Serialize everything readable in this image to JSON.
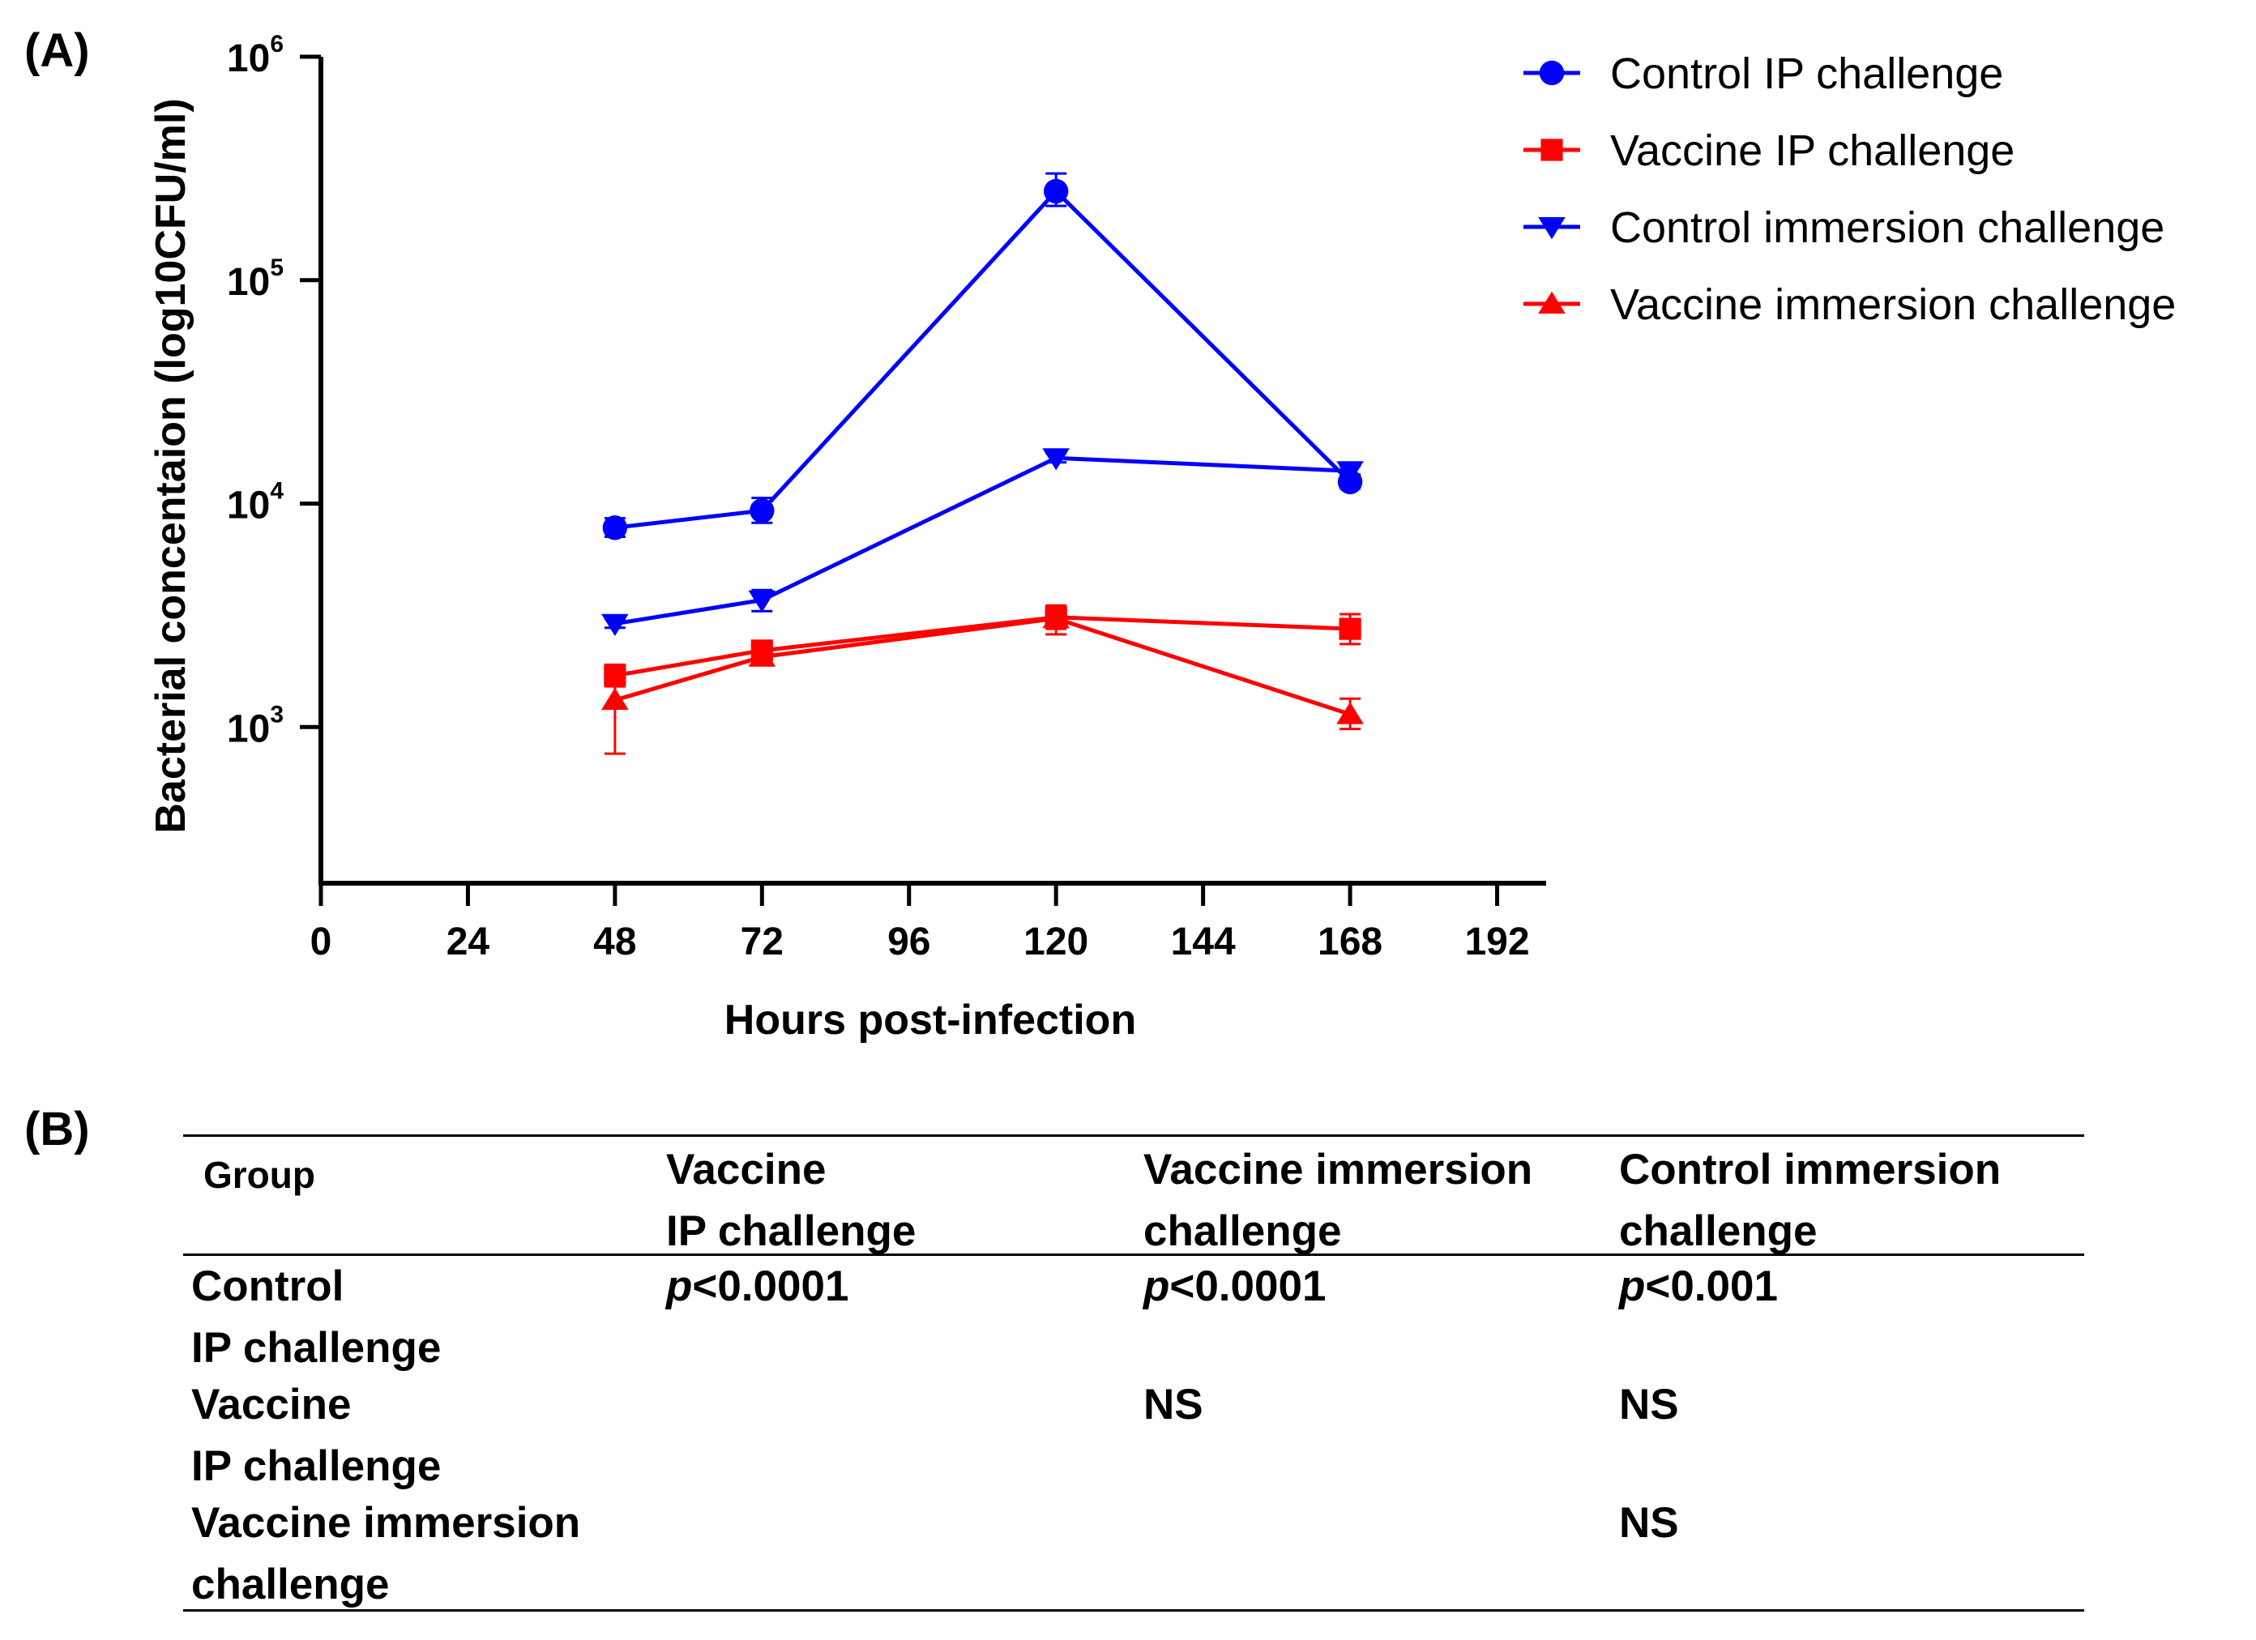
{
  "chart_data": {
    "type": "line",
    "panel_label": "(A)",
    "xlabel": "Hours post-infection",
    "ylabel": "Bacterial concentaion (log10CFU/ml)",
    "xlim": [
      0,
      200
    ],
    "xticks": [
      0,
      24,
      48,
      72,
      96,
      120,
      144,
      168,
      192
    ],
    "yscale": "log",
    "ylim": [
      200,
      1000000
    ],
    "yticks": [
      1000,
      10000,
      100000,
      1000000
    ],
    "ytick_labels": [
      {
        "base": "10",
        "exp": "3"
      },
      {
        "base": "10",
        "exp": "4"
      },
      {
        "base": "10",
        "exp": "5"
      },
      {
        "base": "10",
        "exp": "6"
      }
    ],
    "legend_position": "top-right",
    "x": [
      48,
      72,
      120,
      168
    ],
    "series": [
      {
        "name": "Control IP challenge",
        "color": "#0000ff",
        "marker": "circle",
        "values": [
          7800,
          9300,
          250000,
          12500
        ],
        "err_upper": [
          8600,
          10600,
          300000,
          13500
        ],
        "err_lower": [
          7100,
          8200,
          215000,
          11700
        ]
      },
      {
        "name": "Vaccine IP challenge",
        "color": "#ff0000",
        "marker": "square",
        "values": [
          1700,
          2200,
          3100,
          2750
        ],
        "err_upper": [
          1900,
          2400,
          3500,
          3200
        ],
        "err_lower": [
          1520,
          2020,
          2750,
          2350
        ]
      },
      {
        "name": "Control immersion challenge",
        "color": "#0000ff",
        "marker": "triangle-down",
        "values": [
          2900,
          3700,
          16000,
          14000
        ],
        "err_upper": [
          3050,
          4100,
          16800,
          14700
        ],
        "err_lower": [
          2780,
          3300,
          15300,
          13300
        ]
      },
      {
        "name": "Vaccine immersion challenge",
        "color": "#ff0000",
        "marker": "triangle-up",
        "values": [
          1320,
          2060,
          3060,
          1140
        ],
        "err_upper": [
          1720,
          2230,
          3420,
          1340
        ],
        "err_lower": [
          760,
          1900,
          2600,
          980
        ]
      }
    ]
  },
  "table": {
    "panel_label": "(B)",
    "headers": [
      "Group",
      "Vaccine\nIP challenge",
      "Vaccine immersion\nchallenge",
      "Control immersion\nchallenge"
    ],
    "rows": [
      {
        "group": "Control\nIP challenge",
        "cells": [
          "<0.0001",
          "<0.0001",
          "<0.001"
        ],
        "p_symbol": "p"
      },
      {
        "group": "Vaccine\nIP challenge",
        "cells": [
          "",
          "NS",
          "NS"
        ]
      },
      {
        "group": "Vaccine immersion\nchallenge",
        "cells": [
          "",
          "",
          "NS"
        ]
      }
    ]
  }
}
